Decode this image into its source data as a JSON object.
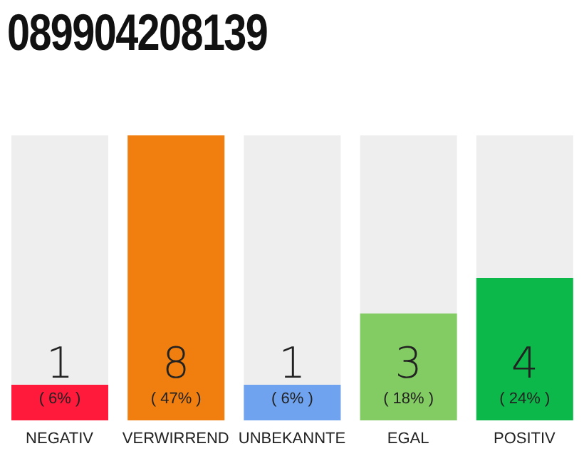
{
  "chart_data": {
    "type": "bar",
    "title": "089904208139",
    "categories": [
      "NEGATIV",
      "VERWIRREND",
      "UNBEKANNTE",
      "EGAL",
      "POSITIV"
    ],
    "values": [
      1,
      8,
      1,
      3,
      4
    ],
    "colors": [
      "#ff1a3c",
      "#f07f10",
      "#6fa3ef",
      "#82cc63",
      "#0db84a"
    ],
    "data_labels": true,
    "annotations": [
      "( 6% )",
      "( 47% )",
      "( 6% )",
      "( 18% )",
      "( 24% )"
    ],
    "tick_labels": "x"
  }
}
